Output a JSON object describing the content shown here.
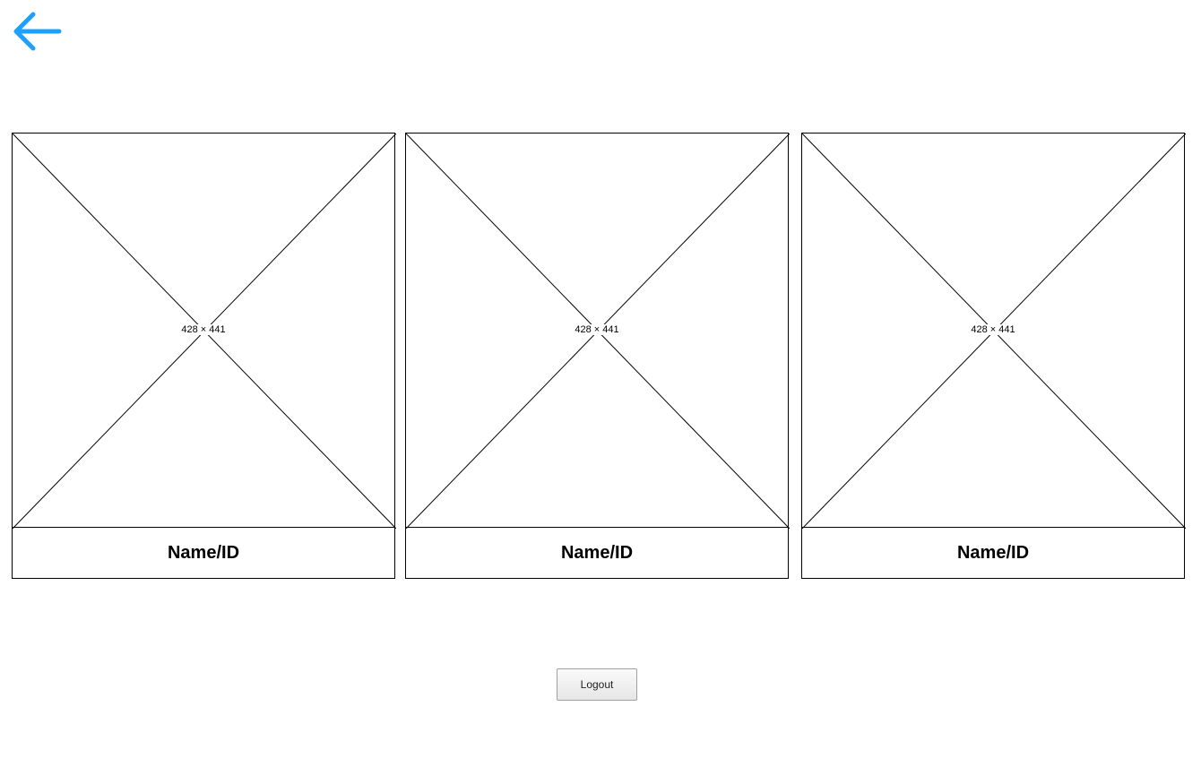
{
  "back": {
    "icon": "arrow-left-icon",
    "color": "#1ea0ff"
  },
  "cards": [
    {
      "dimensions": "428 × 441",
      "name": "Name/ID"
    },
    {
      "dimensions": "428 × 441",
      "name": "Name/ID"
    },
    {
      "dimensions": "428 × 441",
      "name": "Name/ID"
    }
  ],
  "logout": {
    "label": "Logout"
  }
}
